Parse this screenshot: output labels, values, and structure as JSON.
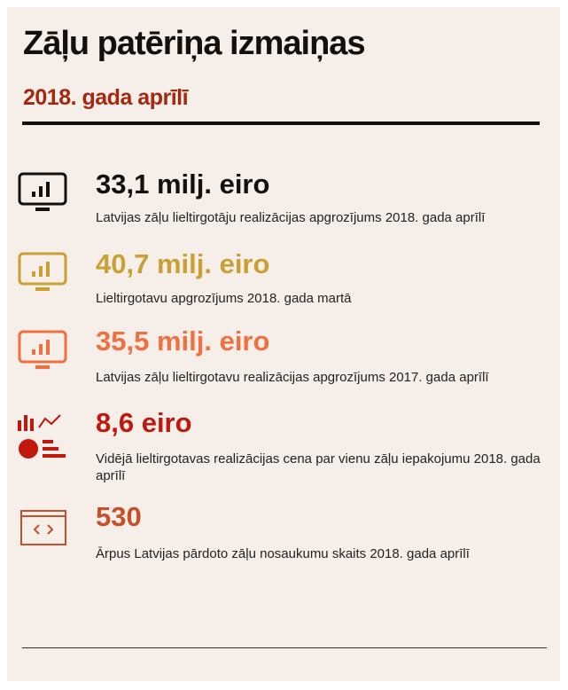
{
  "header": {
    "title": "Zāļu patēriņa izmaiņas",
    "subtitle": "2018. gada aprīlī"
  },
  "items": [
    {
      "value": "33,1 milj. eiro",
      "description": "Latvijas zāļu lieltirgotāju realizācijas apgrozījums 2018. gada aprīlī"
    },
    {
      "value": "40,7 milj. eiro",
      "description": "Lieltirgotavu apgrozījums 2018. gada martā"
    },
    {
      "value": "35,5 milj. eiro",
      "description": "Latvijas zāļu lieltirgotavu realizācijas apgrozījums 2017. gada aprīlī"
    },
    {
      "value": "8,6 eiro",
      "description": "Vidējā lieltirgotavas realizācijas cena par vienu zāļu iepakojumu 2018. gada aprīlī"
    },
    {
      "value": "530",
      "description": "Ārpus Latvijas pārdoto zāļu nosaukumu skaits 2018. gada aprīlī"
    }
  ]
}
